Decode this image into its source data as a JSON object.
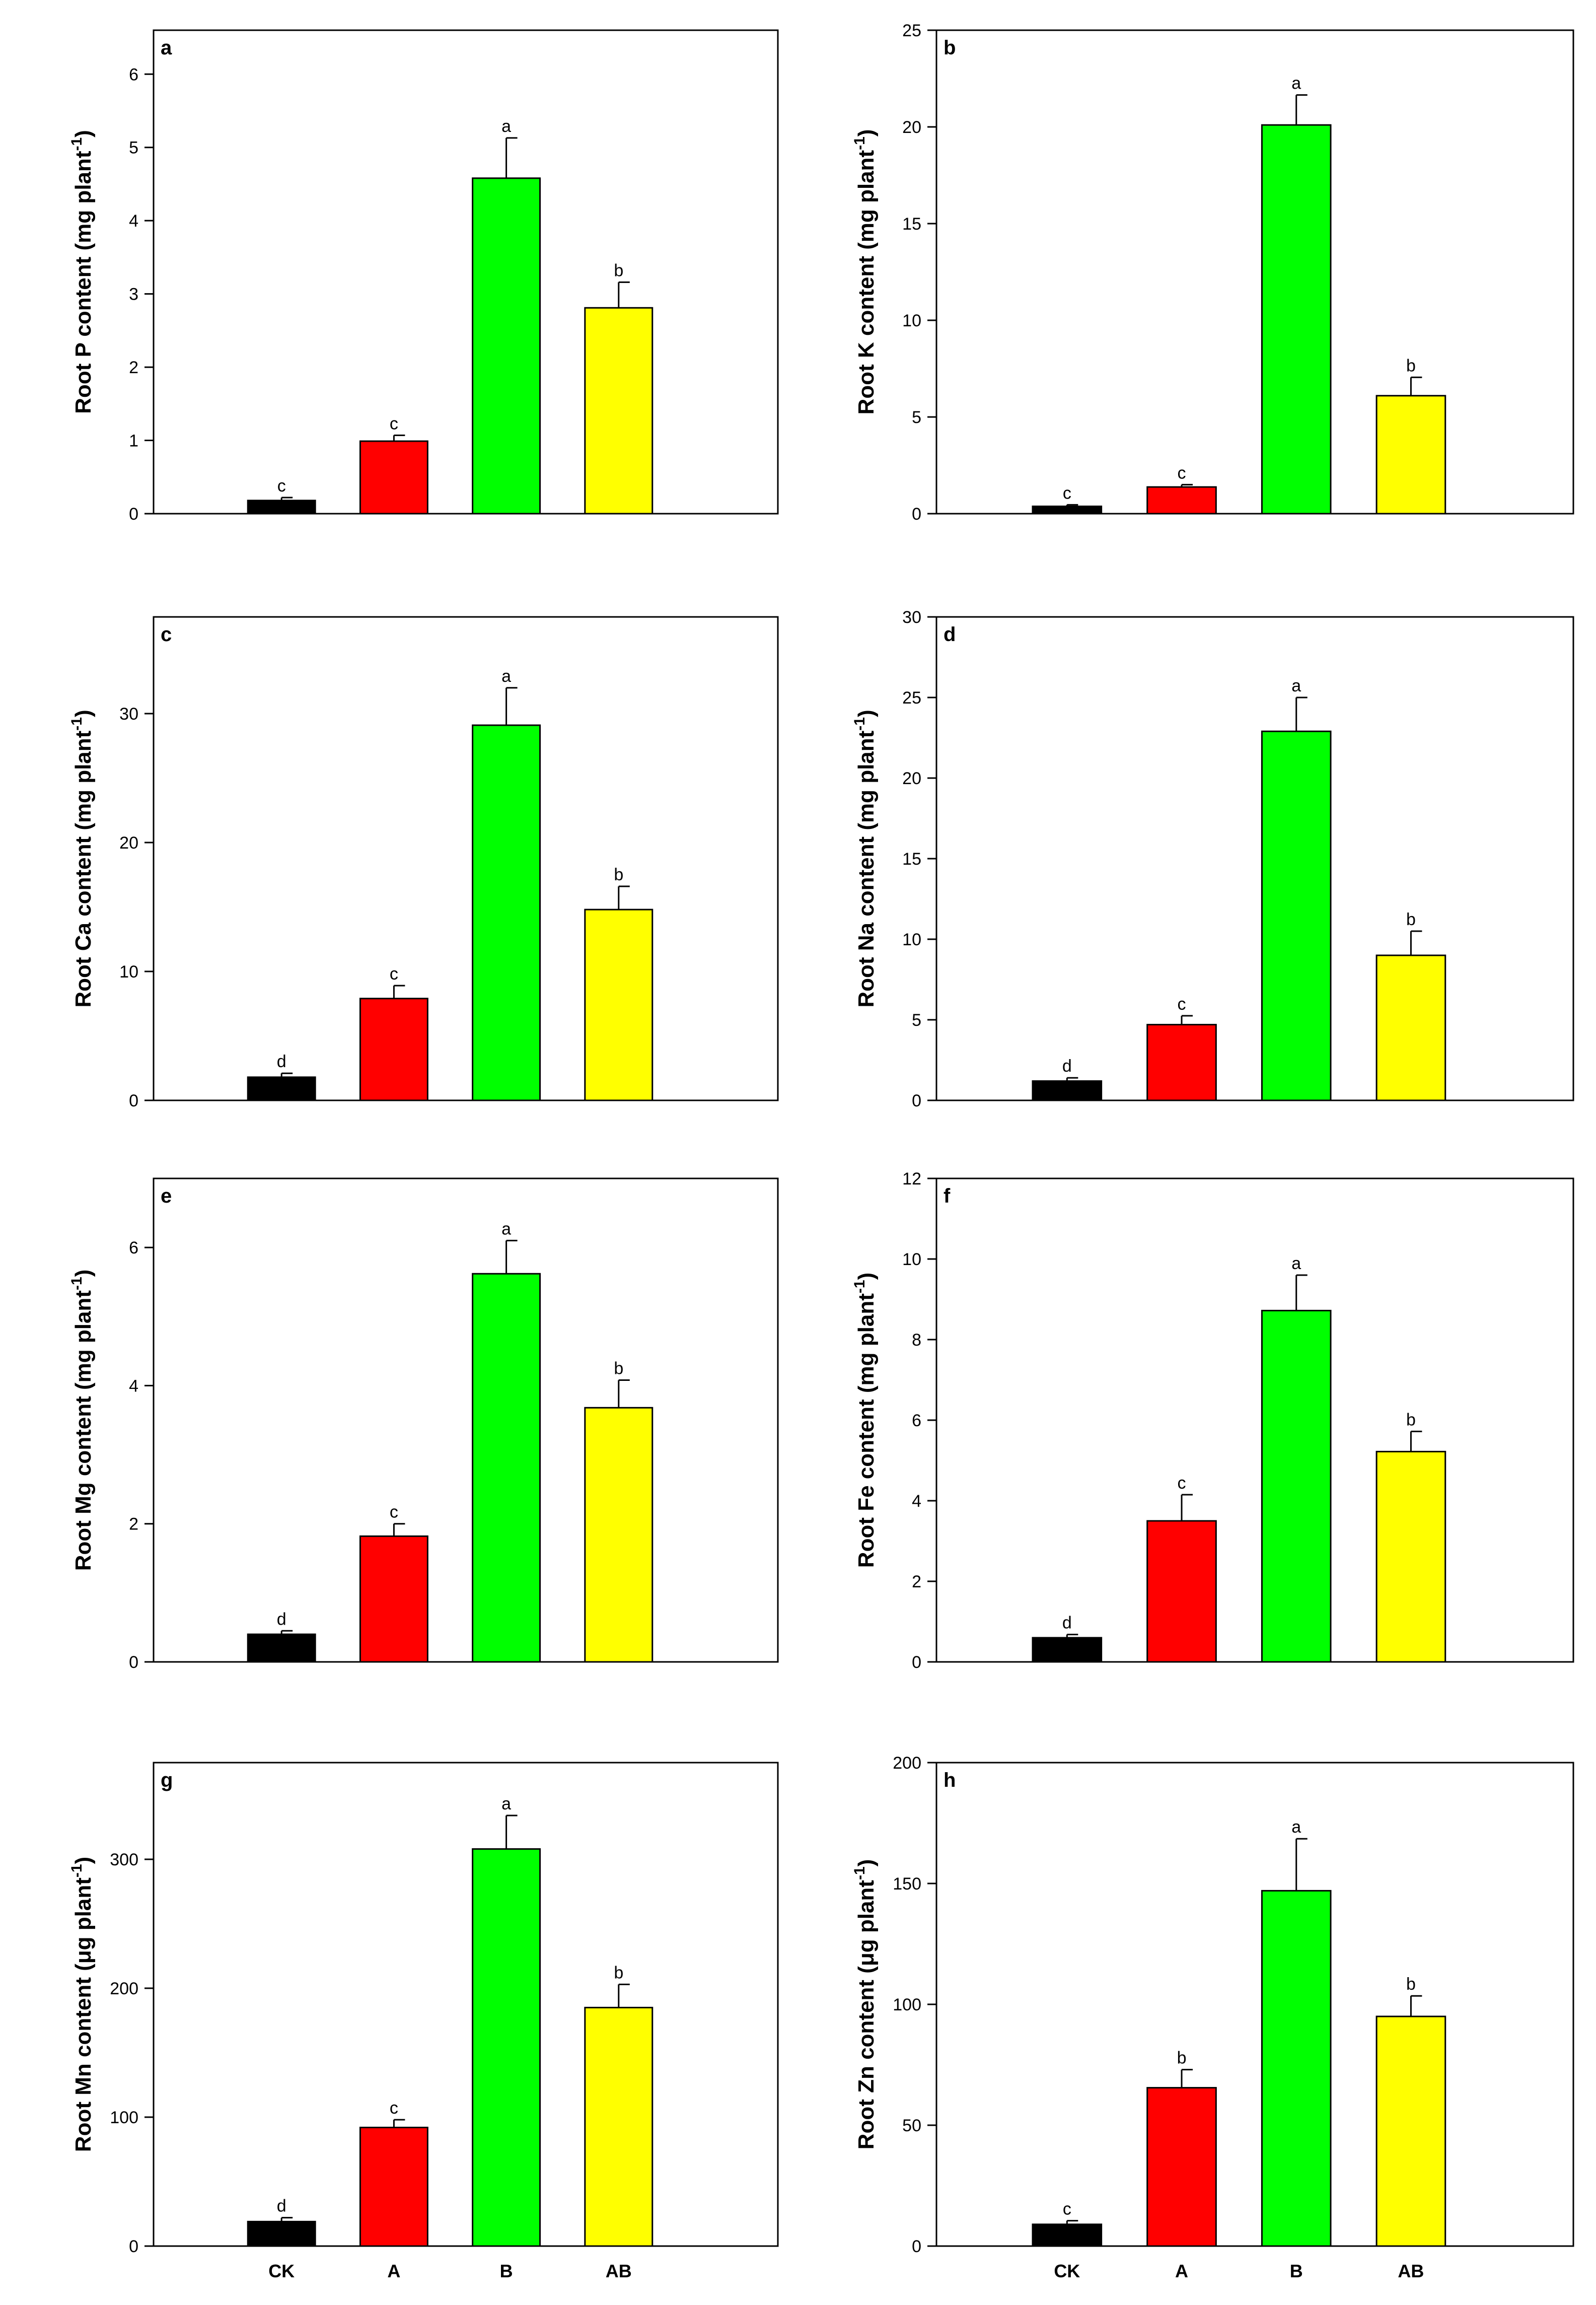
{
  "chart_data": [
    {
      "type": "bar",
      "panel_label": "a",
      "ylabel": "Root P content (mg plant",
      "ylabel_sup": "-1",
      "ylabel_close": ")",
      "categories": [
        "CK",
        "A",
        "B",
        "AB"
      ],
      "values": [
        0.18,
        0.99,
        4.58,
        2.81
      ],
      "errors": [
        0.04,
        0.08,
        0.55,
        0.35
      ],
      "significance": [
        "c",
        "c",
        "a",
        "b"
      ],
      "colors": [
        "#000000",
        "#ff0000",
        "#00ff00",
        "#ffff00"
      ],
      "ylim": [
        0,
        6.6
      ],
      "yticks": [
        0,
        1,
        2,
        3,
        4,
        5,
        6
      ],
      "show_xticklabels": false
    },
    {
      "type": "bar",
      "panel_label": "b",
      "ylabel": "Root K content (mg plant",
      "ylabel_sup": "-1",
      "ylabel_close": ")",
      "categories": [
        "CK",
        "A",
        "B",
        "AB"
      ],
      "values": [
        0.38,
        1.38,
        20.1,
        6.1
      ],
      "errors": [
        0.08,
        0.12,
        1.55,
        0.95
      ],
      "significance": [
        "c",
        "c",
        "a",
        "b"
      ],
      "colors": [
        "#000000",
        "#ff0000",
        "#00ff00",
        "#ffff00"
      ],
      "ylim": [
        0,
        25
      ],
      "yticks": [
        0,
        5,
        10,
        15,
        20,
        25
      ],
      "show_xticklabels": false
    },
    {
      "type": "bar",
      "panel_label": "c",
      "ylabel": "Root Ca content (mg plant",
      "ylabel_sup": "-1",
      "ylabel_close": ")",
      "categories": [
        "CK",
        "A",
        "B",
        "AB"
      ],
      "values": [
        1.8,
        7.9,
        29.1,
        14.8
      ],
      "errors": [
        0.3,
        1.0,
        2.9,
        1.8
      ],
      "significance": [
        "d",
        "c",
        "a",
        "b"
      ],
      "colors": [
        "#000000",
        "#ff0000",
        "#00ff00",
        "#ffff00"
      ],
      "ylim": [
        0,
        37.5
      ],
      "yticks": [
        0,
        10,
        20,
        30
      ],
      "show_xticklabels": false
    },
    {
      "type": "bar",
      "panel_label": "d",
      "ylabel": "Root Na content (mg plant",
      "ylabel_sup": "-1",
      "ylabel_close": ")",
      "categories": [
        "CK",
        "A",
        "B",
        "AB"
      ],
      "values": [
        1.2,
        4.7,
        22.9,
        9.0
      ],
      "errors": [
        0.2,
        0.55,
        2.1,
        1.5
      ],
      "significance": [
        "d",
        "c",
        "a",
        "b"
      ],
      "colors": [
        "#000000",
        "#ff0000",
        "#00ff00",
        "#ffff00"
      ],
      "ylim": [
        0,
        30
      ],
      "yticks": [
        0,
        5,
        10,
        15,
        20,
        25,
        30
      ],
      "show_xticklabels": false
    },
    {
      "type": "bar",
      "panel_label": "e",
      "ylabel": "Root Mg content (mg plant",
      "ylabel_sup": "-1",
      "ylabel_close": ")",
      "categories": [
        "CK",
        "A",
        "B",
        "AB"
      ],
      "values": [
        0.4,
        1.82,
        5.62,
        3.68
      ],
      "errors": [
        0.05,
        0.18,
        0.48,
        0.4
      ],
      "significance": [
        "d",
        "c",
        "a",
        "b"
      ],
      "colors": [
        "#000000",
        "#ff0000",
        "#00ff00",
        "#ffff00"
      ],
      "ylim": [
        0,
        7
      ],
      "yticks": [
        0,
        2,
        4,
        6
      ],
      "show_xticklabels": false
    },
    {
      "type": "bar",
      "panel_label": "f",
      "ylabel": "Root Fe content (mg plant",
      "ylabel_sup": "-1",
      "ylabel_close": ")",
      "categories": [
        "CK",
        "A",
        "B",
        "AB"
      ],
      "values": [
        0.6,
        3.5,
        8.72,
        5.22
      ],
      "errors": [
        0.08,
        0.65,
        0.88,
        0.5
      ],
      "significance": [
        "d",
        "c",
        "a",
        "b"
      ],
      "colors": [
        "#000000",
        "#ff0000",
        "#00ff00",
        "#ffff00"
      ],
      "ylim": [
        0,
        12
      ],
      "yticks": [
        0,
        2,
        4,
        6,
        8,
        10,
        12
      ],
      "show_xticklabels": false
    },
    {
      "type": "bar",
      "panel_label": "g",
      "ylabel": "Root Mn content (μg plant",
      "ylabel_sup": "-1",
      "ylabel_close": ")",
      "categories": [
        "CK",
        "A",
        "B",
        "AB"
      ],
      "values": [
        19,
        92,
        308,
        185
      ],
      "errors": [
        3,
        6,
        26,
        18
      ],
      "significance": [
        "d",
        "c",
        "a",
        "b"
      ],
      "colors": [
        "#000000",
        "#ff0000",
        "#00ff00",
        "#ffff00"
      ],
      "ylim": [
        0,
        375
      ],
      "yticks": [
        0,
        100,
        200,
        300
      ],
      "show_xticklabels": true
    },
    {
      "type": "bar",
      "panel_label": "h",
      "ylabel": "Root Zn content (μg plant",
      "ylabel_sup": "-1",
      "ylabel_close": ")",
      "categories": [
        "CK",
        "A",
        "B",
        "AB"
      ],
      "values": [
        9,
        65.5,
        147,
        95
      ],
      "errors": [
        1.5,
        7.5,
        21.5,
        8.5
      ],
      "significance": [
        "c",
        "b",
        "a",
        "b"
      ],
      "colors": [
        "#000000",
        "#ff0000",
        "#00ff00",
        "#ffff00"
      ],
      "ylim": [
        0,
        200
      ],
      "yticks": [
        0,
        50,
        100,
        150,
        200
      ],
      "show_xticklabels": true
    }
  ]
}
